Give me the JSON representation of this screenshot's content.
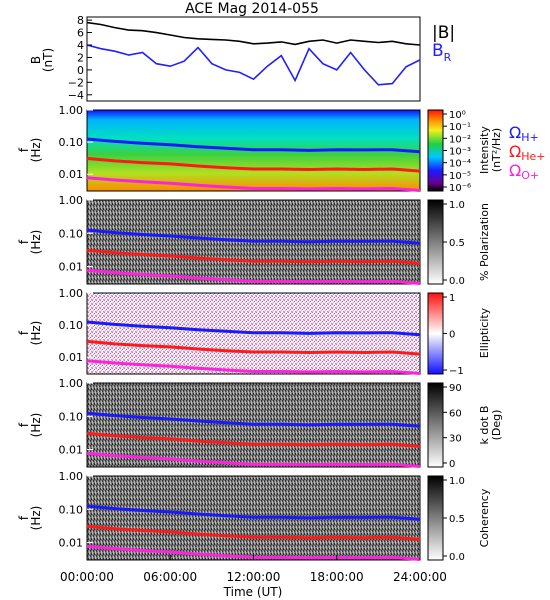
{
  "title": "ACE Mag 2014-055",
  "x_axis": {
    "label": "Time (UT)",
    "ticks": [
      "00:00:00",
      "06:00:00",
      "12:00:00",
      "18:00:00",
      "24:00:00"
    ]
  },
  "legend": {
    "b_total": "|B|",
    "b_radial_main": "B",
    "b_radial_sub": "R",
    "omega_h": "Ω",
    "omega_h_sub": "H+",
    "omega_he": "Ω",
    "omega_he_sub": "He+",
    "omega_o": "Ω",
    "omega_o_sub": "O+"
  },
  "freq_ticks": [
    "1.00",
    "0.10",
    "0.01"
  ],
  "panels": {
    "mag": {
      "ylabel_1": "B",
      "ylabel_2": "(nT)",
      "yticks": [
        "8",
        "6",
        "4",
        "2",
        "0",
        "−2",
        "−4"
      ]
    },
    "intensity": {
      "ylabel_1": "f",
      "ylabel_2": "(Hz)",
      "cbar_label_1": "Intensity",
      "cbar_label_2": "(nT²/Hz)",
      "cbar_ticks": [
        "10⁰",
        "10⁻¹",
        "10⁻²",
        "10⁻³",
        "10⁻⁴",
        "10⁻⁵",
        "10⁻⁶"
      ]
    },
    "polarization": {
      "ylabel_1": "f",
      "ylabel_2": "(Hz)",
      "cbar_label": "% Polarization",
      "cbar_ticks": [
        "1.0",
        "0.5",
        "0.0"
      ]
    },
    "ellipticity": {
      "ylabel_1": "f",
      "ylabel_2": "(Hz)",
      "cbar_label": "Ellipticity",
      "cbar_ticks": [
        "1",
        "0",
        "−1"
      ]
    },
    "kdotb": {
      "ylabel_1": "f",
      "ylabel_2": "(Hz)",
      "cbar_label_1": "k dot B",
      "cbar_label_2": "(Deg)",
      "cbar_ticks": [
        "90",
        "60",
        "30",
        "0"
      ]
    },
    "coherency": {
      "ylabel_1": "f",
      "ylabel_2": "(Hz)",
      "cbar_label": "Coherency",
      "cbar_ticks": [
        "1.0",
        "0.5",
        "0.0"
      ]
    }
  },
  "colors": {
    "b_total": "#000000",
    "b_radial": "#2020ff",
    "omega_h": "#1a1aff",
    "omega_he": "#ff1a1a",
    "omega_o": "#ff22dd"
  },
  "chart_data": [
    {
      "type": "line",
      "title": "ACE Mag 2014-055",
      "xlabel": "Time (UT)",
      "ylabel": "B (nT)",
      "xlim_hours": [
        0,
        24
      ],
      "ylim": [
        -5,
        8.5
      ],
      "x_hours": [
        0,
        1,
        2,
        3,
        4,
        5,
        6,
        7,
        8,
        9,
        10,
        11,
        12,
        13,
        14,
        15,
        16,
        17,
        18,
        19,
        20,
        21,
        22,
        23,
        24
      ],
      "series": [
        {
          "name": "|B|",
          "values": [
            7.6,
            7.3,
            6.8,
            6.4,
            6.3,
            6.0,
            5.6,
            5.2,
            5.0,
            4.9,
            4.8,
            4.6,
            4.2,
            4.3,
            4.5,
            4.1,
            4.6,
            4.8,
            4.3,
            4.8,
            4.6,
            4.4,
            4.6,
            4.2,
            4.0
          ]
        },
        {
          "name": "B_R",
          "values": [
            4.0,
            3.4,
            3.0,
            2.4,
            2.8,
            1.0,
            0.6,
            1.4,
            3.6,
            1.0,
            0.0,
            -0.4,
            -1.5,
            0.6,
            2.3,
            -1.7,
            3.4,
            1.0,
            0.0,
            2.8,
            0.0,
            -2.4,
            -2.2,
            0.5,
            1.6
          ]
        }
      ]
    },
    {
      "type": "heatmap",
      "ylabel": "f (Hz)",
      "yscale": "log",
      "ylim": [
        0.003,
        1.0
      ],
      "xlim_hours": [
        0,
        24
      ],
      "x_hours": [
        0,
        2,
        4,
        6,
        8,
        10,
        12,
        14,
        16,
        18,
        20,
        22,
        24
      ],
      "series": [
        {
          "name": "ΩH+",
          "values": [
            0.125,
            0.105,
            0.092,
            0.083,
            0.072,
            0.064,
            0.058,
            0.058,
            0.055,
            0.058,
            0.057,
            0.058,
            0.05
          ]
        },
        {
          "name": "ΩHe+",
          "values": [
            0.031,
            0.026,
            0.023,
            0.021,
            0.018,
            0.016,
            0.0145,
            0.0145,
            0.014,
            0.0145,
            0.014,
            0.0145,
            0.0125
          ]
        },
        {
          "name": "ΩO+",
          "values": [
            0.0078,
            0.0066,
            0.0058,
            0.0052,
            0.0045,
            0.004,
            0.0036,
            0.0036,
            0.0035,
            0.0036,
            0.0035,
            0.0036,
            0.0031
          ]
        }
      ]
    }
  ]
}
